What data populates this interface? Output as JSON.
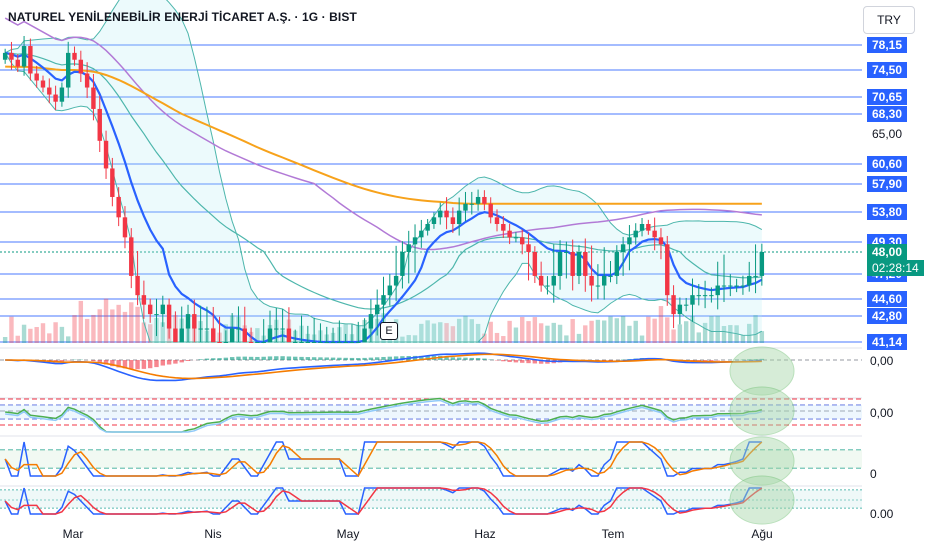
{
  "header": {
    "title": "NATUREL YENİLENEBİLİR ENERJİ TİCARET A.Ş. · 1G · BIST",
    "currency_label": "TRY"
  },
  "event_badge": "E",
  "price_axis": {
    "levels": [
      {
        "label": "78,15",
        "style": "blue",
        "value": 78.15
      },
      {
        "label": "74,50",
        "style": "blue",
        "value": 74.5
      },
      {
        "label": "70,65",
        "style": "blue",
        "value": 70.65
      },
      {
        "label": "68,30",
        "style": "blue",
        "value": 68.3
      },
      {
        "label": "65,00",
        "style": "plain",
        "value": 65.0
      },
      {
        "label": "60,60",
        "style": "blue",
        "value": 60.6
      },
      {
        "label": "57,90",
        "style": "blue",
        "value": 57.9
      },
      {
        "label": "53,80",
        "style": "blue",
        "value": 53.8
      },
      {
        "label": "49,30",
        "style": "blue",
        "value": 49.3
      },
      {
        "label": "47,20",
        "style": "blue",
        "value": 47.2
      },
      {
        "label": "44,60",
        "style": "blue",
        "value": 44.6
      },
      {
        "label": "42,80",
        "style": "blue",
        "value": 42.8
      },
      {
        "label": "41,14",
        "style": "blue",
        "value": 41.14
      }
    ],
    "current_price": "48,00",
    "countdown": "02:28:14"
  },
  "indicator_axis": {
    "labels": [
      "0,00",
      "0,00",
      "0",
      "0.00"
    ]
  },
  "x_axis": {
    "labels": [
      "Mar",
      "Nis",
      "May",
      "Haz",
      "Tem",
      "Ağu"
    ]
  },
  "colors": {
    "up": "#089981",
    "down": "#f23645",
    "level_line": "#2962ff",
    "ema_fast": "#2962ff",
    "ema_slow": "#f7a21b",
    "sma_purple": "#b27ad6",
    "bb_teal": "#4db6ac",
    "signal_orange": "#f57c00"
  },
  "chart_data": {
    "type": "candlestick",
    "symbol": "NATUREL YENİLENEBİLİR ENERJİ TİCARET A.Ş.",
    "interval": "1G",
    "exchange": "BIST",
    "currency": "TRY",
    "closes": [
      77,
      76,
      75,
      78,
      74,
      73,
      72,
      71,
      70,
      72,
      77,
      76,
      74,
      72,
      69,
      64,
      60,
      56,
      53,
      50,
      47,
      45,
      44,
      43,
      43,
      44,
      42,
      41,
      42,
      43,
      42,
      42,
      42,
      41,
      40,
      41,
      42,
      42,
      41,
      40,
      40,
      41,
      42,
      42,
      42,
      41,
      41,
      41,
      41,
      41,
      41,
      41,
      41,
      41,
      41,
      41,
      41,
      42,
      43,
      44,
      45,
      46,
      47,
      48,
      49,
      50,
      51,
      52,
      53,
      54,
      53,
      52,
      54,
      55,
      55,
      56,
      55,
      53,
      52,
      51,
      50,
      50,
      49,
      48,
      47,
      46,
      46,
      47,
      48,
      48,
      47,
      48,
      47,
      46,
      46,
      47,
      47,
      48,
      49,
      50,
      51,
      52,
      51,
      50,
      49,
      45,
      43,
      44,
      44,
      45,
      45,
      45,
      45,
      46,
      46,
      46,
      46,
      46,
      47,
      47,
      48
    ],
    "current_price": 48.0,
    "y_range": [
      41.14,
      80
    ],
    "levels": [
      78.15,
      74.5,
      70.65,
      68.3,
      60.6,
      57.9,
      53.8,
      49.3,
      47.2,
      44.6,
      42.8,
      41.14
    ]
  }
}
